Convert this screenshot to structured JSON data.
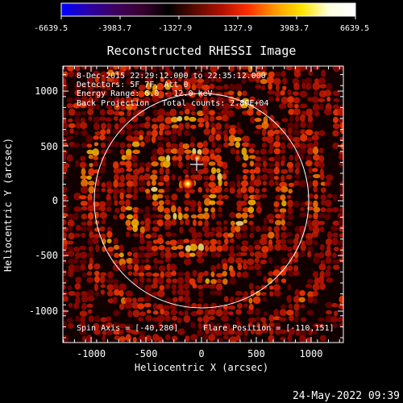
{
  "colorbar": {
    "stops": [
      "#0000ff",
      "#2a00a8",
      "#3d0060",
      "#3a0030",
      "#000000",
      "#5a0a00",
      "#b01000",
      "#ff3000",
      "#ff9a00",
      "#ffe400",
      "#ffffe0",
      "#ffffff"
    ],
    "tick_labels": [
      "-6639.5",
      "-3983.7",
      "-1327.9",
      "1327.9",
      "3983.7",
      "6639.5"
    ]
  },
  "title": "Reconstructed RHESSI Image",
  "info": {
    "line1": "8-Dec-2015 22:29:12.000 to 22:35:12.000",
    "line2": "Detectors: 5F 7F, Att 0",
    "line3": "Energy Range: 6.0 - 12.0 keV",
    "line4_a": "Back Projection",
    "line4_b": "Total counts: 2.80E+04"
  },
  "footer_left": "Spin Axis = [-40,280]",
  "footer_right": "Flare Position = [-110,151]",
  "x_axis": {
    "label": "Heliocentric X (arcsec)",
    "ticks": [
      "-1000",
      "-500",
      "0",
      "500",
      "1000"
    ]
  },
  "y_axis": {
    "label": "Heliocentric Y (arcsec)",
    "ticks": [
      "1000",
      "500",
      "0",
      "-500",
      "-1000"
    ]
  },
  "timestamp": "24-May-2022 09:39"
}
